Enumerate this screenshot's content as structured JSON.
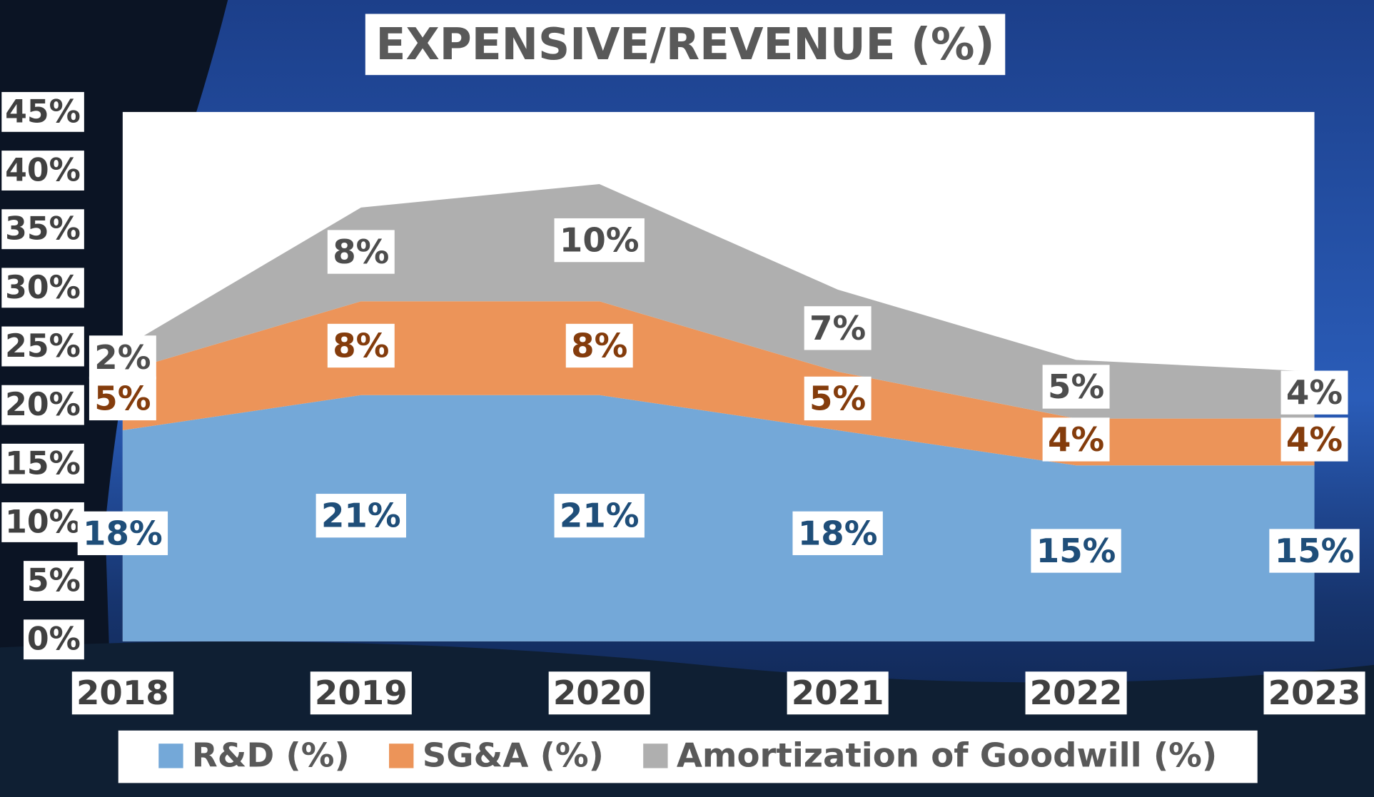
{
  "chart_data": {
    "type": "stacked_area",
    "title": "EXPENSIVE/REVENUE (%)",
    "categories": [
      "2018",
      "2019",
      "2020",
      "2021",
      "2022",
      "2023"
    ],
    "series": [
      {
        "name": "R&D (%)",
        "color": "#74a8d8",
        "values": [
          18,
          21,
          21,
          18,
          15,
          15
        ],
        "value_labels": [
          "18%",
          "21%",
          "21%",
          "18%",
          "15%",
          "15%"
        ]
      },
      {
        "name": "SG&A (%)",
        "color": "#ec9459",
        "values": [
          5,
          8,
          8,
          5,
          4,
          4
        ],
        "value_labels": [
          "5%",
          "8%",
          "8%",
          "5%",
          "4%",
          "4%"
        ]
      },
      {
        "name": "Amortization of Goodwill (%)",
        "color": "#afafaf",
        "values": [
          2,
          8,
          10,
          7,
          5,
          4
        ],
        "value_labels": [
          "2%",
          "8%",
          "10%",
          "7%",
          "5%",
          "4%"
        ]
      }
    ],
    "ylim": [
      0,
      45
    ],
    "yticks": [
      {
        "value": 0,
        "label": "0%"
      },
      {
        "value": 5,
        "label": "5%"
      },
      {
        "value": 10,
        "label": "10%"
      },
      {
        "value": 15,
        "label": "15%"
      },
      {
        "value": 20,
        "label": "20%"
      },
      {
        "value": 25,
        "label": "25%"
      },
      {
        "value": 30,
        "label": "30%"
      },
      {
        "value": 35,
        "label": "35%"
      },
      {
        "value": 40,
        "label": "40%"
      },
      {
        "value": 45,
        "label": "45%"
      }
    ],
    "legend": "bottom"
  }
}
